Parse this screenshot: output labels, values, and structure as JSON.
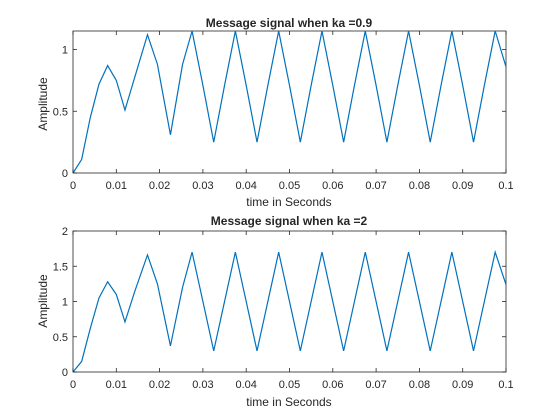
{
  "chart_data": [
    {
      "type": "line",
      "title": "Message signal when ka =0.9",
      "xlabel": "time in Seconds",
      "ylabel": "Amplitude",
      "xlim": [
        0,
        0.1
      ],
      "ylim": [
        0,
        1.15
      ],
      "xticks": [
        "0",
        "0.01",
        "0.02",
        "0.03",
        "0.04",
        "0.05",
        "0.06",
        "0.07",
        "0.08",
        "0.09",
        "0.1"
      ],
      "yticks": [
        "0",
        "0.5",
        "1"
      ],
      "ytick_values": [
        0,
        0.5,
        1
      ],
      "grid": false,
      "series": [
        {
          "color": "#0072BD",
          "x": [
            0,
            0.002,
            0.004,
            0.006,
            0.008,
            0.01,
            0.012,
            0.0143,
            0.0172,
            0.0195,
            0.0225,
            0.0253,
            0.0275,
            0.03,
            0.0325,
            0.035,
            0.0375,
            0.04,
            0.0425,
            0.045,
            0.0475,
            0.05,
            0.0525,
            0.055,
            0.0575,
            0.06,
            0.0625,
            0.065,
            0.0675,
            0.07,
            0.0725,
            0.075,
            0.0775,
            0.08,
            0.0825,
            0.085,
            0.0875,
            0.09,
            0.0925,
            0.095,
            0.0975,
            0.1
          ],
          "y": [
            0,
            0.11,
            0.45,
            0.72,
            0.87,
            0.75,
            0.51,
            0.78,
            1.12,
            0.88,
            0.31,
            0.88,
            1.15,
            0.71,
            0.25,
            0.71,
            1.15,
            0.71,
            0.25,
            0.71,
            1.15,
            0.71,
            0.25,
            0.71,
            1.15,
            0.71,
            0.25,
            0.71,
            1.15,
            0.71,
            0.25,
            0.71,
            1.15,
            0.71,
            0.25,
            0.71,
            1.15,
            0.71,
            0.25,
            0.71,
            1.15,
            0.86
          ]
        }
      ]
    },
    {
      "type": "line",
      "title": "Message signal when ka =2",
      "xlabel": "time in Seconds",
      "ylabel": "Amplitude",
      "xlim": [
        0,
        0.1
      ],
      "ylim": [
        0,
        2
      ],
      "xticks": [
        "0",
        "0.01",
        "0.02",
        "0.03",
        "0.04",
        "0.05",
        "0.06",
        "0.07",
        "0.08",
        "0.09",
        "0.1"
      ],
      "yticks": [
        "0",
        "0.5",
        "1",
        "1.5",
        "2"
      ],
      "ytick_values": [
        0,
        0.5,
        1,
        1.5,
        2
      ],
      "grid": false,
      "series": [
        {
          "color": "#0072BD",
          "x": [
            0,
            0.002,
            0.004,
            0.006,
            0.008,
            0.01,
            0.012,
            0.0143,
            0.0172,
            0.0195,
            0.0225,
            0.0253,
            0.0275,
            0.03,
            0.0325,
            0.035,
            0.0375,
            0.04,
            0.0425,
            0.045,
            0.0475,
            0.05,
            0.0525,
            0.055,
            0.0575,
            0.06,
            0.0625,
            0.065,
            0.0675,
            0.07,
            0.0725,
            0.075,
            0.0775,
            0.08,
            0.0825,
            0.085,
            0.0875,
            0.09,
            0.0925,
            0.095,
            0.0975,
            0.1
          ],
          "y": [
            0,
            0.15,
            0.62,
            1.05,
            1.28,
            1.1,
            0.71,
            1.15,
            1.66,
            1.25,
            0.37,
            1.2,
            1.7,
            1.0,
            0.3,
            1.0,
            1.7,
            1.0,
            0.3,
            1.0,
            1.7,
            1.0,
            0.3,
            1.0,
            1.7,
            1.0,
            0.3,
            1.0,
            1.7,
            1.0,
            0.3,
            1.0,
            1.7,
            1.0,
            0.3,
            1.0,
            1.7,
            1.0,
            0.3,
            1.0,
            1.7,
            1.24
          ]
        }
      ]
    }
  ]
}
